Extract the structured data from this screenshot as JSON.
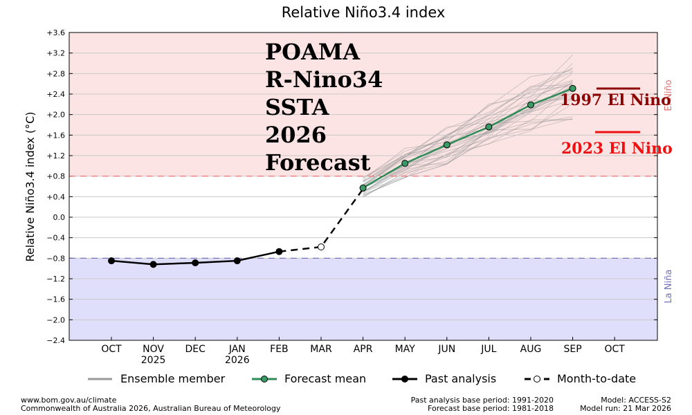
{
  "chart_data": {
    "type": "line",
    "title": "Relative Niño3.4 index",
    "ylabel": "Relative Niño3.4 index (°C)",
    "ylim": [
      -2.4,
      3.6
    ],
    "yticks": [
      {
        "value": 3.6,
        "label": "+3.6"
      },
      {
        "value": 3.2,
        "label": "+3.2"
      },
      {
        "value": 2.8,
        "label": "+2.8"
      },
      {
        "value": 2.4,
        "label": "+2.4"
      },
      {
        "value": 2.0,
        "label": "+2.0"
      },
      {
        "value": 1.6,
        "label": "+1.6"
      },
      {
        "value": 1.2,
        "label": "+1.2"
      },
      {
        "value": 0.8,
        "label": "+0.8"
      },
      {
        "value": 0.4,
        "label": "+0.4"
      },
      {
        "value": 0.0,
        "label": "0.0"
      },
      {
        "value": -0.4,
        "label": "−0.4"
      },
      {
        "value": -0.8,
        "label": "−0.8"
      },
      {
        "value": -1.2,
        "label": "−1.2"
      },
      {
        "value": -1.6,
        "label": "−1.6"
      },
      {
        "value": -2.0,
        "label": "−2.0"
      },
      {
        "value": -2.4,
        "label": "−2.4"
      }
    ],
    "xticks": [
      {
        "label": "OCT",
        "sub": ""
      },
      {
        "label": "NOV",
        "sub": "2025"
      },
      {
        "label": "DEC",
        "sub": ""
      },
      {
        "label": "JAN",
        "sub": "2026"
      },
      {
        "label": "FEB",
        "sub": ""
      },
      {
        "label": "MAR",
        "sub": ""
      },
      {
        "label": "APR",
        "sub": ""
      },
      {
        "label": "MAY",
        "sub": ""
      },
      {
        "label": "JUN",
        "sub": ""
      },
      {
        "label": "JUL",
        "sub": ""
      },
      {
        "label": "AUG",
        "sub": ""
      },
      {
        "label": "SEP",
        "sub": ""
      },
      {
        "label": "OCT",
        "sub": ""
      }
    ],
    "thresholds": {
      "el_nino": 0.8,
      "la_nina": -0.8
    },
    "region_labels": {
      "el_nino": "El Niño",
      "la_nina": "La Niña"
    },
    "colors": {
      "el_nino_fill": "#fde4e4",
      "la_nina_fill": "#dfdffc",
      "el_nino_line": "#e86a6a",
      "la_nina_line": "#6a6ab8",
      "el_nino_text": "#e07070",
      "la_nina_text": "#7070b8",
      "forecast": "#2e8b57",
      "forecast_dot": "#3a9a66",
      "ensemble": "#999999",
      "past": "#000000",
      "ann_1997": "#8b0000",
      "ann_2023": "#ee1111"
    },
    "series": [
      {
        "name": "Past analysis",
        "x": [
          0,
          1,
          2,
          3,
          4
        ],
        "values": [
          -0.85,
          -0.92,
          -0.89,
          -0.85,
          -0.67
        ]
      },
      {
        "name": "Month-to-date",
        "x": [
          4,
          5,
          6
        ],
        "values": [
          -0.67,
          -0.58,
          0.55
        ]
      },
      {
        "name": "Forecast mean",
        "x": [
          6,
          7,
          8,
          9,
          10,
          11
        ],
        "values": [
          0.57,
          1.05,
          1.41,
          1.76,
          2.19,
          2.51
        ]
      }
    ],
    "ensemble": {
      "name": "Ensemble member",
      "x_start": 6,
      "members": 30,
      "spread_start": 0.25,
      "spread_end": 0.75
    }
  },
  "overlay": {
    "lines": [
      "POAMA",
      "R-Nino34",
      "SSTA",
      "2026",
      "Forecast"
    ],
    "annotation_1997": "1997 El Nino",
    "annotation_2023": "2023 El Nino"
  },
  "legend": {
    "ensemble": "Ensemble member",
    "forecast": "Forecast mean",
    "past": "Past analysis",
    "mtd": "Month-to-date"
  },
  "footer": {
    "left1": "www.bom.gov.au/climate",
    "left2": "Commonwealth of Australia 2026, Australian Bureau of Meteorology",
    "mid1": "Past analysis base period: 1991-2020",
    "mid2": "Forecast base period: 1981-2018",
    "right1": "Model: ACCESS-S2",
    "right2": "Model run: 21 Mar 2026"
  }
}
